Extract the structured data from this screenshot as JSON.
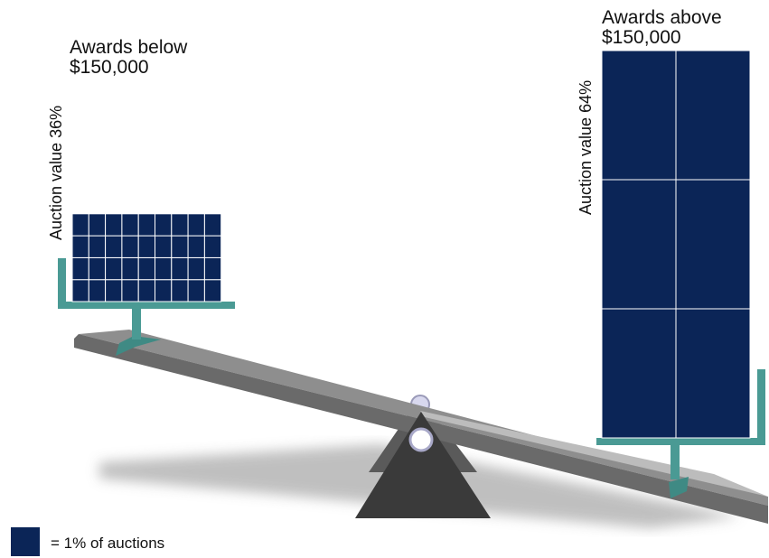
{
  "left_group": {
    "title_line1": "Awards below",
    "title_line2": "$150,000",
    "side_label": "Auction value 36%",
    "count": 36
  },
  "right_group": {
    "title_line1": "Awards above",
    "title_line2": "$150,000",
    "side_label": "Auction value 64%",
    "count": 6
  },
  "legend": {
    "label": "= 1% of auctions"
  },
  "colors": {
    "block": "#0b2557",
    "tray": "#4a9a94",
    "beam_top": "#a9a9a9",
    "beam_side": "#6f6f6f",
    "fulcrum": "#3a3a3a",
    "shadow": "#b9b9b9"
  }
}
